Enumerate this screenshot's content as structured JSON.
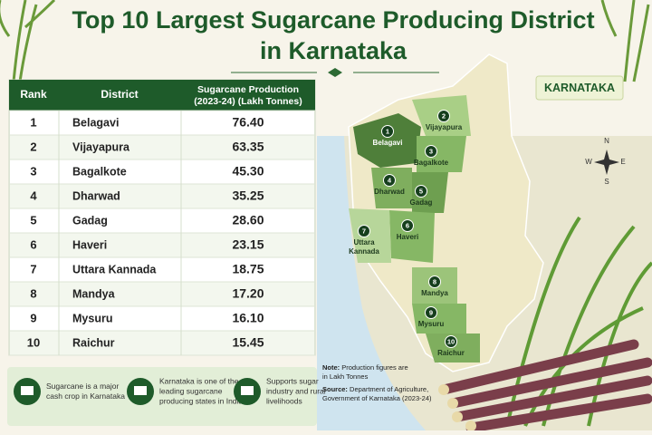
{
  "header": {
    "title_lines": [
      "Top 10 Largest Sugarcane Producing District",
      "in Karnataka"
    ]
  },
  "table": {
    "columns": [
      "Rank",
      "District",
      [
        "Sugarcane Production",
        "(2023-24) (Lakh Tonnes)"
      ]
    ],
    "rows": [
      [
        1,
        "Belagavi",
        "76.40"
      ],
      [
        2,
        "Vijayapura",
        "63.35"
      ],
      [
        3,
        "Bagalkote",
        "45.30"
      ],
      [
        4,
        "Dharwad",
        "35.25"
      ],
      [
        5,
        "Gadag",
        "28.60"
      ],
      [
        6,
        "Haveri",
        "23.15"
      ],
      [
        7,
        "Uttara Kannada",
        "18.75"
      ],
      [
        8,
        "Mandya",
        "17.20"
      ],
      [
        9,
        "Mysuru",
        "16.10"
      ],
      [
        10,
        "Raichur",
        "15.45"
      ]
    ]
  },
  "features": [
    [
      "Sugarcane is a major",
      "cash crop in Karnataka"
    ],
    [
      "Karnataka is one of the",
      "leading sugarcane",
      "producing states in India"
    ],
    [
      "Supports sugar",
      "industry and rural",
      "livelihoods"
    ]
  ],
  "map": {
    "badge": "KARNATAKA",
    "compass": [
      "N",
      "E",
      "S",
      "W"
    ],
    "markers": [
      {
        "number": 1,
        "name": [
          "Belagavi"
        ]
      },
      {
        "number": 2,
        "name": [
          "Vijayapura"
        ]
      },
      {
        "number": 3,
        "name": [
          "Bagalkote"
        ]
      },
      {
        "number": 4,
        "name": [
          "Dharwad"
        ]
      },
      {
        "number": 5,
        "name": [
          "Gadag"
        ]
      },
      {
        "number": 6,
        "name": [
          "Haveri"
        ]
      },
      {
        "number": 7,
        "name": [
          "Uttara",
          "Kannada"
        ]
      },
      {
        "number": 8,
        "name": [
          "Mandya"
        ]
      },
      {
        "number": 9,
        "name": [
          "Mysuru"
        ]
      },
      {
        "number": 10,
        "name": [
          "Raichur"
        ]
      }
    ]
  },
  "note": {
    "label": "Note:",
    "lines": [
      "Production figures are",
      "in Lakh Tonnes"
    ]
  },
  "source": {
    "label": "Source:",
    "lines": [
      "Department of Agriculture,",
      "Government of Karnataka (2023-24)"
    ]
  }
}
